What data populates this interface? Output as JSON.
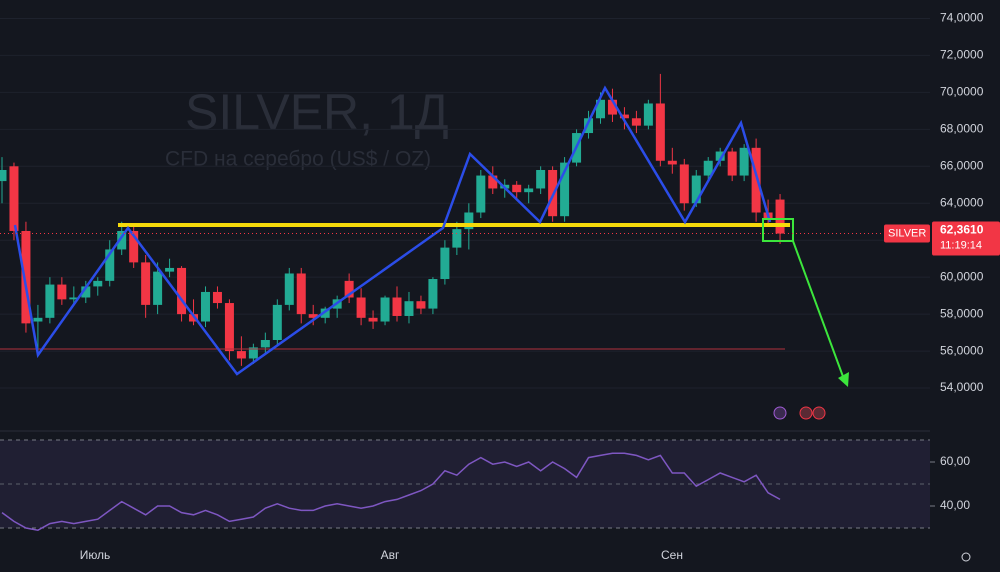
{
  "chart_data": {
    "type": "candlestick",
    "title": "SILVER, 1Д",
    "subtitle": "CFD на серебро (US$ / OZ)",
    "symbol": "SILVER",
    "last_price": 62.361,
    "last_price_label": "62,3610",
    "countdown": "11:19:14",
    "time_labels": [
      "Июль",
      "Авг",
      "Сен"
    ],
    "up_color": "#22ab94",
    "down_color": "#f23645",
    "ylim": [
      52,
      75
    ],
    "yticks": [
      {
        "value": 54,
        "label": "54,0000"
      },
      {
        "value": 56,
        "label": "56,0000"
      },
      {
        "value": 58,
        "label": "58,0000"
      },
      {
        "value": 60,
        "label": "60,0000"
      },
      {
        "value": 62,
        "label": "62,0000"
      },
      {
        "value": 64,
        "label": "64,0000"
      },
      {
        "value": 66,
        "label": "66,0000"
      },
      {
        "value": 68,
        "label": "68,0000"
      },
      {
        "value": 70,
        "label": "70,0000"
      },
      {
        "value": 72,
        "label": "72,0000"
      },
      {
        "value": 74,
        "label": "74,0000"
      }
    ],
    "candles": {
      "open": [
        65.2,
        66,
        62.5,
        57.6,
        57.8,
        59.6,
        58.8,
        58.9,
        59.5,
        59.8,
        61.5,
        62.5,
        60.8,
        58.5,
        60.3,
        60.5,
        58,
        57.6,
        59.2,
        58.6,
        56,
        55.6,
        56.2,
        56.6,
        58.5,
        60.2,
        58,
        57.8,
        58.3,
        59.8,
        58.9,
        57.8,
        57.6,
        58.9,
        57.9,
        58.7,
        58.3,
        59.9,
        61.6,
        62.6,
        63.5,
        65.5,
        64.8,
        65,
        64.6,
        64.8,
        65.8,
        63.3,
        66.2,
        67.8,
        68.6,
        69.6,
        68.8,
        68.6,
        68.2,
        69.4,
        66.3,
        66.1,
        64,
        65.5,
        66.3,
        66.8,
        65.5,
        67,
        63.5,
        64.2
      ],
      "high": [
        66.5,
        66.2,
        63,
        58.5,
        60,
        60,
        59.5,
        59.8,
        60,
        62,
        63,
        62.8,
        61.2,
        60.8,
        61,
        60.6,
        58.8,
        59.5,
        59.5,
        58.8,
        56.8,
        56.4,
        57,
        58.8,
        60.5,
        60.5,
        58.5,
        58.4,
        59,
        60.2,
        59.4,
        58.2,
        59,
        59.5,
        59.2,
        59,
        60,
        62,
        63,
        64,
        65.8,
        66,
        65.3,
        65.2,
        65,
        66,
        66,
        66.5,
        68,
        69,
        70,
        70.2,
        69.2,
        69,
        69.6,
        71,
        67,
        66.4,
        65.8,
        66.5,
        67,
        67,
        67.2,
        67.5,
        64.2,
        64.5
      ],
      "low": [
        64,
        62,
        57,
        56,
        57.5,
        58.5,
        58.5,
        58.6,
        59,
        59.5,
        61.2,
        60.5,
        57.8,
        58,
        60,
        57.6,
        57.4,
        57.3,
        58.3,
        55.5,
        55.2,
        55.3,
        55.8,
        56.3,
        58.2,
        57.5,
        57.4,
        57.5,
        57.8,
        58.6,
        57.4,
        57.2,
        57.4,
        57.6,
        57.5,
        58,
        58,
        59.6,
        61.2,
        61.5,
        63.2,
        64.5,
        64.3,
        64.2,
        64,
        64.5,
        63,
        63,
        66,
        67.5,
        68.3,
        68.4,
        68,
        67.8,
        68,
        66,
        65.6,
        63.6,
        63.8,
        65.2,
        66,
        65.2,
        65.2,
        63,
        62.8,
        61.8
      ],
      "close": [
        65.8,
        62.5,
        57.5,
        57.8,
        59.6,
        58.8,
        58.9,
        59.5,
        59.8,
        61.5,
        62.5,
        60.8,
        58.5,
        60.3,
        60.5,
        58,
        57.6,
        59.2,
        58.6,
        56,
        55.6,
        56.2,
        56.6,
        58.5,
        60.2,
        58,
        57.8,
        58.3,
        58.8,
        58.9,
        57.8,
        57.6,
        58.9,
        57.9,
        58.7,
        58.3,
        59.9,
        61.6,
        62.6,
        63.5,
        65.5,
        64.8,
        65,
        64.6,
        64.8,
        65.8,
        63.3,
        66.2,
        67.8,
        68.6,
        69.6,
        68.8,
        68.6,
        68.2,
        69.4,
        66.3,
        66.1,
        64,
        65.5,
        66.3,
        66.8,
        65.5,
        67,
        63.5,
        63.2,
        62.361
      ]
    },
    "rsi": {
      "color": "#7e57c2",
      "ylim": [
        30,
        70
      ],
      "yticks": [
        {
          "value": 40,
          "label": "40,00"
        },
        {
          "value": 60,
          "label": "60,00"
        }
      ],
      "values": [
        37,
        33,
        30,
        29,
        32,
        33,
        32,
        33,
        34,
        38,
        42,
        39,
        36,
        40,
        40,
        37,
        36,
        38,
        36,
        33,
        34,
        35,
        39,
        41,
        39,
        38,
        38,
        40,
        41,
        40,
        39,
        40,
        42,
        43,
        45,
        47,
        50,
        56,
        54,
        59,
        62,
        59,
        60,
        58,
        60,
        56,
        60,
        57,
        53,
        62,
        63,
        64,
        64,
        63,
        61,
        63,
        55,
        55,
        49,
        52,
        55,
        53,
        51,
        54,
        46,
        43
      ]
    }
  }
}
